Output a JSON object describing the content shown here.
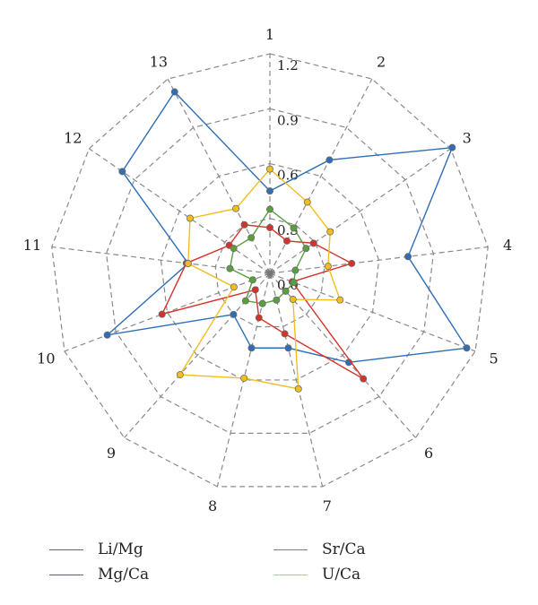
{
  "chart_data": {
    "type": "radar",
    "categories": [
      "1",
      "2",
      "3",
      "4",
      "5",
      "6",
      "7",
      "8",
      "9",
      "10",
      "11",
      "12",
      "13"
    ],
    "rlim": [
      0,
      1.2
    ],
    "ticks": [
      "0.0",
      "0.3",
      "0.6",
      "0.9",
      "1.2"
    ],
    "grid": true,
    "legend_position": "bottom",
    "series": [
      {
        "name": "Li/Mg",
        "color": "#2E6EB5",
        "values": [
          0.45,
          0.7,
          1.21,
          0.76,
          1.15,
          0.65,
          0.42,
          0.42,
          0.3,
          0.95,
          0.45,
          0.98,
          1.12
        ]
      },
      {
        "name": "Mg/Ca",
        "color": "#D6312A",
        "values": [
          0.25,
          0.2,
          0.29,
          0.45,
          0.13,
          0.77,
          0.34,
          0.25,
          0.12,
          0.63,
          0.46,
          0.27,
          0.3
        ]
      },
      {
        "name": "Sr/Ca",
        "color": "#5A9E3E",
        "values": [
          0.35,
          0.28,
          0.24,
          0.14,
          0.14,
          0.13,
          0.15,
          0.17,
          0.2,
          0.1,
          0.22,
          0.24,
          0.22
        ]
      },
      {
        "name": "U/Ca",
        "color": "#F2BE1E",
        "values": [
          0.57,
          0.44,
          0.4,
          0.32,
          0.41,
          0.19,
          0.65,
          0.59,
          0.74,
          0.21,
          0.45,
          0.53,
          0.4
        ]
      }
    ]
  }
}
